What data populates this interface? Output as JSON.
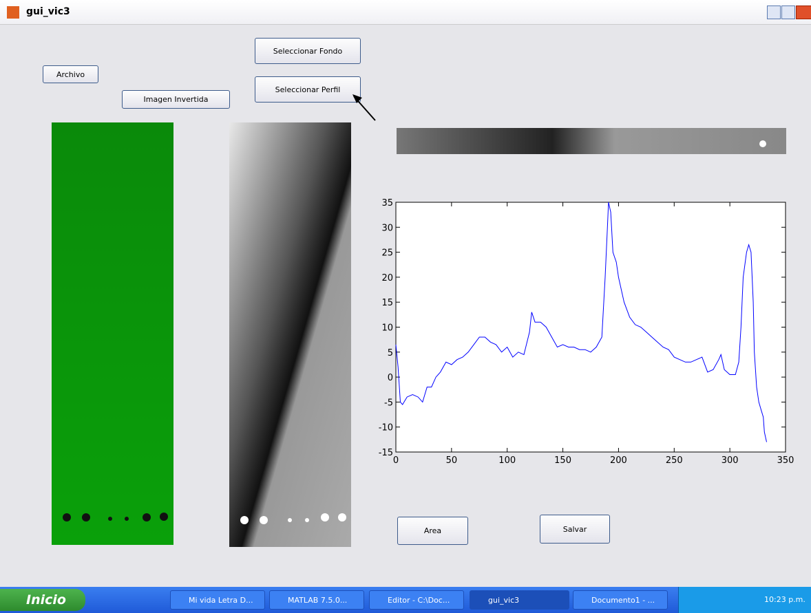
{
  "window": {
    "title": "gui_vic3"
  },
  "buttons": [
    "Archivo",
    "Imagen Invertida",
    "Seleccionar Fondo",
    "Seleccionar Perfil",
    "Area",
    "Salvar"
  ],
  "taskbar": {
    "start": "Inicio",
    "items": [
      "Mi vida Letra D...",
      "MATLAB 7.5.0...",
      "Editor - C:\\Doc...",
      "gui_vic3",
      "Documento1 - ..."
    ],
    "clock": "10:23 p.m."
  },
  "chart_data": {
    "type": "line",
    "x": [
      0,
      2,
      4,
      6,
      10,
      15,
      20,
      24,
      28,
      32,
      36,
      40,
      45,
      50,
      55,
      60,
      65,
      70,
      75,
      80,
      85,
      90,
      95,
      100,
      105,
      110,
      115,
      120,
      122,
      125,
      130,
      135,
      140,
      145,
      150,
      155,
      160,
      165,
      170,
      175,
      180,
      185,
      188,
      190,
      191,
      193,
      195,
      198,
      200,
      205,
      210,
      215,
      220,
      225,
      230,
      235,
      240,
      245,
      250,
      255,
      260,
      265,
      270,
      275,
      280,
      285,
      290,
      292,
      295,
      300,
      305,
      308,
      310,
      312,
      315,
      317,
      319,
      321,
      322,
      324,
      326,
      328,
      330,
      331,
      333
    ],
    "values": [
      6.5,
      2,
      -5,
      -5.5,
      -4,
      -3.5,
      -4,
      -5,
      -2,
      -2,
      0,
      1,
      3,
      2.5,
      3.5,
      4,
      5,
      6.5,
      8,
      8,
      7,
      6.5,
      5,
      6,
      4,
      5,
      4.5,
      9,
      13,
      11,
      11,
      10,
      8,
      6,
      6.5,
      6,
      6,
      5.5,
      5.5,
      5,
      6,
      8,
      20,
      30,
      35,
      33,
      25,
      23,
      20,
      15,
      12,
      10.5,
      10,
      9,
      8,
      7,
      6,
      5.5,
      4,
      3.5,
      3,
      3,
      3.5,
      4,
      1,
      1.5,
      3.5,
      4.5,
      1.5,
      0.5,
      0.5,
      3,
      10,
      20,
      25,
      26.5,
      25,
      15,
      5,
      -2,
      -5,
      -6.5,
      -8,
      -11,
      -13
    ],
    "color": "#0000ff",
    "xlim": [
      0,
      350
    ],
    "ylim": [
      -15,
      35
    ],
    "xticks": [
      0,
      50,
      100,
      150,
      200,
      250,
      300,
      350
    ],
    "yticks": [
      -15,
      -10,
      -5,
      0,
      5,
      10,
      15,
      20,
      25,
      30,
      35
    ]
  }
}
